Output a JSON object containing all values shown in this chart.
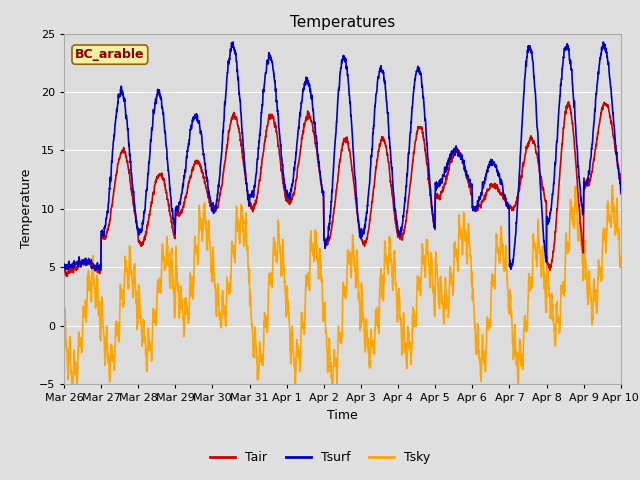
{
  "title": "Temperatures",
  "xlabel": "Time",
  "ylabel": "Temperature",
  "ylim": [
    -5,
    25
  ],
  "y_ticks": [
    -5,
    0,
    5,
    10,
    15,
    20,
    25
  ],
  "x_tick_labels": [
    "Mar 26",
    "Mar 27",
    "Mar 28",
    "Mar 29",
    "Mar 30",
    "Mar 31",
    "Apr 1",
    "Apr 2",
    "Apr 3",
    "Apr 4",
    "Apr 5",
    "Apr 6",
    "Apr 7",
    "Apr 8",
    "Apr 9",
    "Apr 10"
  ],
  "x_tick_positions": [
    0,
    24,
    48,
    72,
    96,
    120,
    144,
    168,
    192,
    216,
    240,
    264,
    288,
    312,
    336,
    360
  ],
  "tair_color": "#cc0000",
  "tsurf_color": "#0000cc",
  "tsky_color": "#ffa500",
  "fig_bg_color": "#e0e0e0",
  "plot_bg_color": "#dcdcdc",
  "legend_box_facecolor": "#f5f0a0",
  "legend_box_edgecolor": "#8b6914",
  "annotation_text": "BC_arable",
  "annotation_color": "#8b0000",
  "legend_labels": [
    "Tair",
    "Tsurf",
    "Tsky"
  ],
  "title_fontsize": 11,
  "axis_label_fontsize": 9,
  "tick_fontsize": 8,
  "line_width": 1.2,
  "n_points": 3601,
  "n_hours": 360
}
